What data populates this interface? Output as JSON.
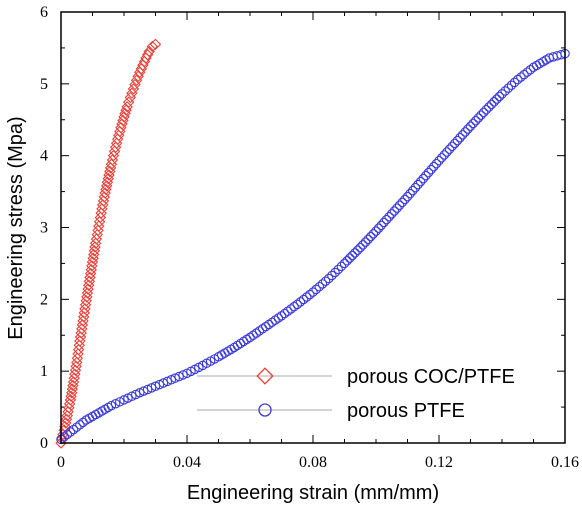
{
  "chart_data": {
    "type": "scatter",
    "xlabel": "Engineering strain (mm/mm)",
    "ylabel": "Engineering stress (Mpa)",
    "xlim": [
      0,
      0.16
    ],
    "ylim": [
      0,
      6
    ],
    "xticks": [
      0,
      0.04,
      0.08,
      0.12,
      0.16
    ],
    "xtick_labels": [
      "0",
      "0.04",
      "0.08",
      "0.12",
      "0.16"
    ],
    "yticks": [
      0,
      1,
      2,
      3,
      4,
      5,
      6
    ],
    "ytick_labels": [
      "0",
      "1",
      "2",
      "3",
      "4",
      "5",
      "6"
    ],
    "grid": false,
    "legend_position": "bottom-right",
    "series": [
      {
        "name": "porous COC/PTFE",
        "marker": "diamond",
        "color": "#e8413a",
        "points": [
          [
            0.0,
            0.0
          ],
          [
            0.001,
            0.18
          ],
          [
            0.002,
            0.38
          ],
          [
            0.003,
            0.6
          ],
          [
            0.004,
            0.85
          ],
          [
            0.005,
            1.12
          ],
          [
            0.006,
            1.42
          ],
          [
            0.007,
            1.7
          ],
          [
            0.008,
            1.98
          ],
          [
            0.009,
            2.25
          ],
          [
            0.01,
            2.52
          ],
          [
            0.011,
            2.78
          ],
          [
            0.012,
            3.02
          ],
          [
            0.013,
            3.26
          ],
          [
            0.014,
            3.48
          ],
          [
            0.015,
            3.68
          ],
          [
            0.016,
            3.88
          ],
          [
            0.017,
            4.06
          ],
          [
            0.018,
            4.23
          ],
          [
            0.019,
            4.39
          ],
          [
            0.02,
            4.54
          ],
          [
            0.021,
            4.68
          ],
          [
            0.022,
            4.81
          ],
          [
            0.023,
            4.93
          ],
          [
            0.024,
            5.05
          ],
          [
            0.025,
            5.16
          ],
          [
            0.026,
            5.26
          ],
          [
            0.027,
            5.36
          ],
          [
            0.028,
            5.45
          ],
          [
            0.029,
            5.52
          ],
          [
            0.03,
            5.55
          ]
        ]
      },
      {
        "name": "porous PTFE",
        "marker": "circle",
        "color": "#3a3ad6",
        "points": [
          [
            0.0,
            0.05
          ],
          [
            0.002,
            0.12
          ],
          [
            0.005,
            0.22
          ],
          [
            0.008,
            0.32
          ],
          [
            0.012,
            0.42
          ],
          [
            0.016,
            0.52
          ],
          [
            0.02,
            0.6
          ],
          [
            0.025,
            0.7
          ],
          [
            0.03,
            0.79
          ],
          [
            0.035,
            0.88
          ],
          [
            0.04,
            0.97
          ],
          [
            0.045,
            1.08
          ],
          [
            0.05,
            1.2
          ],
          [
            0.055,
            1.33
          ],
          [
            0.06,
            1.47
          ],
          [
            0.065,
            1.62
          ],
          [
            0.07,
            1.77
          ],
          [
            0.075,
            1.93
          ],
          [
            0.08,
            2.1
          ],
          [
            0.085,
            2.29
          ],
          [
            0.09,
            2.5
          ],
          [
            0.095,
            2.72
          ],
          [
            0.1,
            2.95
          ],
          [
            0.105,
            3.19
          ],
          [
            0.11,
            3.43
          ],
          [
            0.115,
            3.68
          ],
          [
            0.12,
            3.93
          ],
          [
            0.125,
            4.17
          ],
          [
            0.13,
            4.41
          ],
          [
            0.135,
            4.64
          ],
          [
            0.14,
            4.86
          ],
          [
            0.145,
            5.06
          ],
          [
            0.15,
            5.23
          ],
          [
            0.155,
            5.36
          ],
          [
            0.16,
            5.42
          ]
        ]
      }
    ]
  }
}
